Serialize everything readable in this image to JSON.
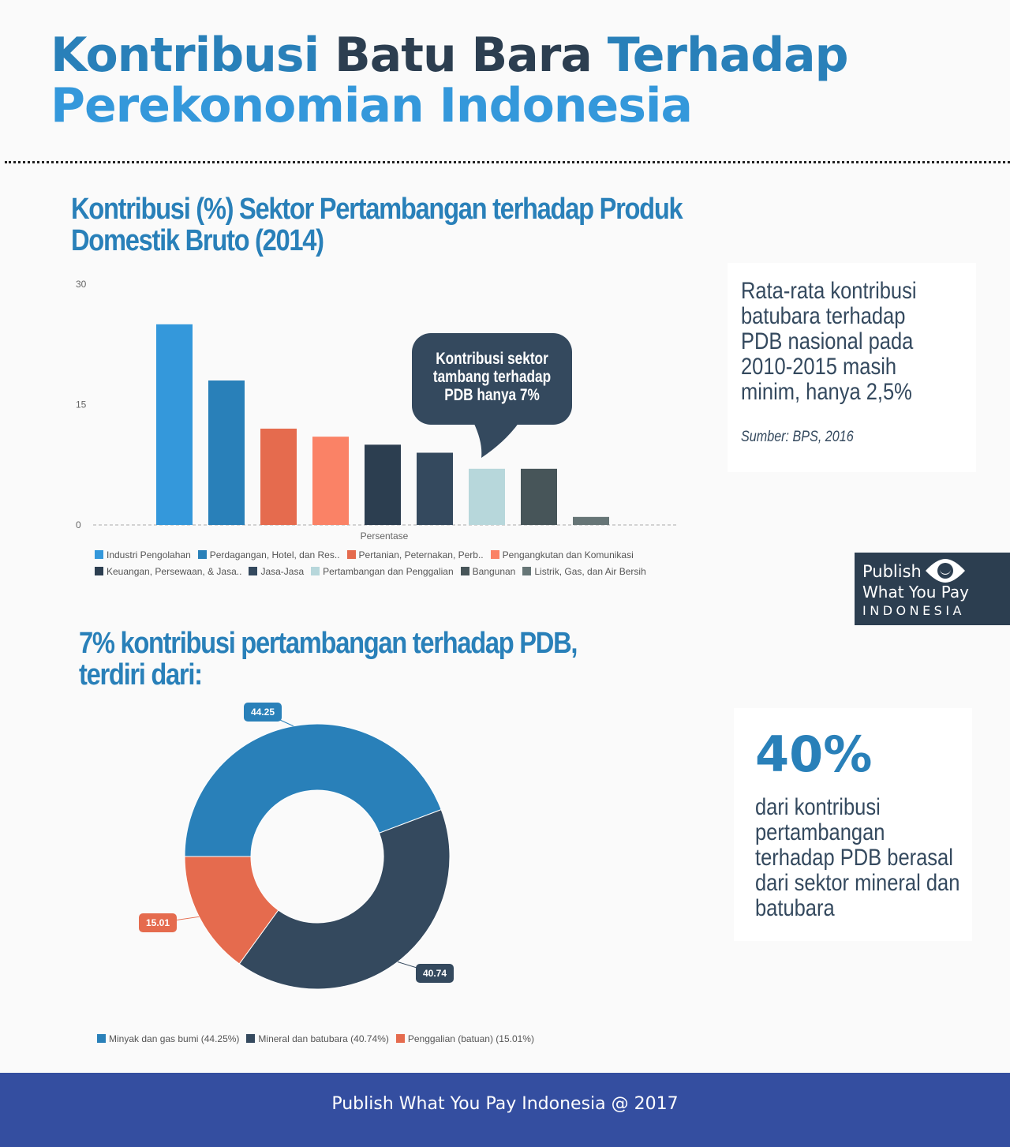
{
  "header": {
    "title_parts": [
      "Kontribusi",
      "Batu Bara",
      "Terhadap",
      "Perekonomian Indonesia"
    ],
    "colors": {
      "blue": "#2980b9",
      "dark": "#2c3e50",
      "light": "#3498db"
    }
  },
  "bar_section": {
    "title": "Kontribusi (%) Sektor Pertambangan terhadap Produk Domestik Bruto (2014)",
    "callout": "Kontribusi sektor tambang terhadap PDB hanya 7%"
  },
  "side_card_1": {
    "text": "Rata-rata kontribusi batubara terhadap PDB nasional pada 2010-2015 masih minim, hanya 2,5%",
    "source": "Sumber: BPS, 2016"
  },
  "logo": {
    "line1": "Publish",
    "line2": "What You Pay",
    "line3": "INDONESIA"
  },
  "donut_section": {
    "title": "7% kontribusi pertambangan terhadap PDB, terdiri dari:"
  },
  "side_card_2": {
    "big": "40%",
    "text": "dari kontribusi pertambangan terhadap PDB berasal dari sektor mineral dan batubara"
  },
  "footer": {
    "text": "Publish What You Pay Indonesia @ 2017"
  },
  "chart_data": [
    {
      "type": "bar",
      "xlabel": "Persentase",
      "ylim": [
        0,
        30
      ],
      "yticks": [
        "0",
        "15",
        "30"
      ],
      "grid": false,
      "legend_position": "bottom",
      "series": [
        {
          "name": "Industri Pengolahan",
          "value": 25,
          "color": "#3498db"
        },
        {
          "name": "Perdagangan, Hotel, dan Res..",
          "value": 18,
          "color": "#2980b9"
        },
        {
          "name": "Pertanian, Peternakan, Perb..",
          "value": 12,
          "color": "#e56b4e"
        },
        {
          "name": "Pengangkutan dan Komunikasi",
          "value": 11,
          "color": "#fa8266"
        },
        {
          "name": "Keuangan, Persewaan, & Jasa..",
          "value": 10,
          "color": "#2c3e50"
        },
        {
          "name": "Jasa-Jasa",
          "value": 9,
          "color": "#34495e"
        },
        {
          "name": "Pertambangan dan Penggalian",
          "value": 7,
          "color": "#b7d7db"
        },
        {
          "name": "Bangunan",
          "value": 7,
          "color": "#475559"
        },
        {
          "name": "Listrik, Gas, dan Air Bersih",
          "value": 1,
          "color": "#667576"
        }
      ]
    },
    {
      "type": "pie",
      "donut": true,
      "legend_position": "bottom",
      "slices": [
        {
          "name": "Minyak dan gas bumi (44.25%)",
          "value": 44.25,
          "label": "44.25",
          "color": "#2980b9"
        },
        {
          "name": "Mineral dan batubara (40.74%)",
          "value": 40.74,
          "label": "40.74",
          "color": "#34495e"
        },
        {
          "name": "Penggalian (batuan) (15.01%)",
          "value": 15.01,
          "label": "15.01",
          "color": "#e56b4e"
        }
      ]
    }
  ]
}
